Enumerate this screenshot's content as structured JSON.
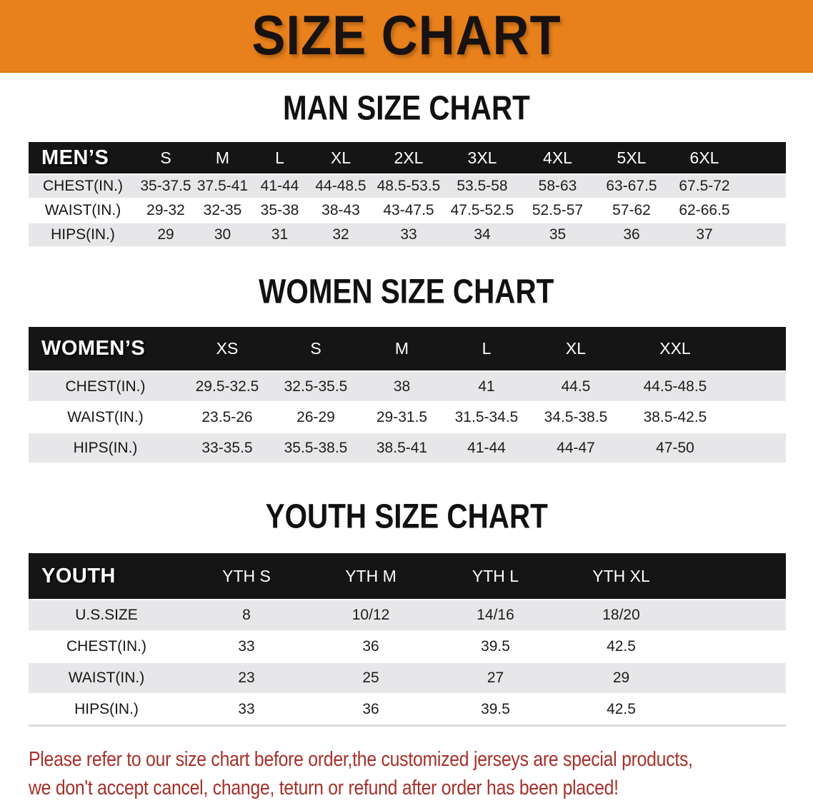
{
  "banner": {
    "title": "SIZE CHART",
    "background_color": "#E8811C",
    "text_color": "#181210"
  },
  "sections": {
    "men": {
      "title": "MAN SIZE CHART",
      "table": {
        "header": [
          "MEN’S",
          "S",
          "M",
          "L",
          "XL",
          "2XL",
          "3XL",
          "4XL",
          "5XL",
          "6XL"
        ],
        "rows": [
          {
            "label": "CHEST(IN.)",
            "values": [
              "35-37.5",
              "37.5-41",
              "41-44",
              "44-48.5",
              "48.5-53.5",
              "53.5-58",
              "58-63",
              "63-67.5",
              "67.5-72"
            ]
          },
          {
            "label": "WAIST(IN.)",
            "values": [
              "29-32",
              "32-35",
              "35-38",
              "38-43",
              "43-47.5",
              "47.5-52.5",
              "52.5-57",
              "57-62",
              "62-66.5"
            ]
          },
          {
            "label": "HIPS(IN.)",
            "values": [
              "29",
              "30",
              "31",
              "32",
              "33",
              "34",
              "35",
              "36",
              "37"
            ]
          }
        ]
      }
    },
    "women": {
      "title": "WOMEN SIZE CHART",
      "table": {
        "header": [
          "WOMEN’S",
          "XS",
          "S",
          "M",
          "L",
          "XL",
          "XXL"
        ],
        "rows": [
          {
            "label": "CHEST(IN.)",
            "values": [
              "29.5-32.5",
              "32.5-35.5",
              "38",
              "41",
              "44.5",
              "44.5-48.5"
            ]
          },
          {
            "label": "WAIST(IN.)",
            "values": [
              "23.5-26",
              "26-29",
              "29-31.5",
              "31.5-34.5",
              "34.5-38.5",
              "38.5-42.5"
            ]
          },
          {
            "label": "HIPS(IN.)",
            "values": [
              "33-35.5",
              "35.5-38.5",
              "38.5-41",
              "41-44",
              "44-47",
              "47-50"
            ]
          }
        ]
      }
    },
    "youth": {
      "title": "YOUTH SIZE CHART",
      "table": {
        "header": [
          "YOUTH",
          "YTH S",
          "YTH M",
          "YTH L",
          "YTH XL"
        ],
        "rows": [
          {
            "label": "U.S.SIZE",
            "values": [
              "8",
              "10/12",
              "14/16",
              "18/20"
            ]
          },
          {
            "label": "CHEST(IN.)",
            "values": [
              "33",
              "36",
              "39.5",
              "42.5"
            ]
          },
          {
            "label": "WAIST(IN.)",
            "values": [
              "23",
              "25",
              "27",
              "29"
            ]
          },
          {
            "label": "HIPS(IN.)",
            "values": [
              "33",
              "36",
              "39.5",
              "42.5"
            ]
          }
        ]
      }
    }
  },
  "notes": {
    "color": "#A7302A",
    "lines": [
      "Please refer to our size chart before order,the customized jerseys are special products,",
      "we don't accept cancel, change, teturn or refund after order has been placed!"
    ]
  }
}
